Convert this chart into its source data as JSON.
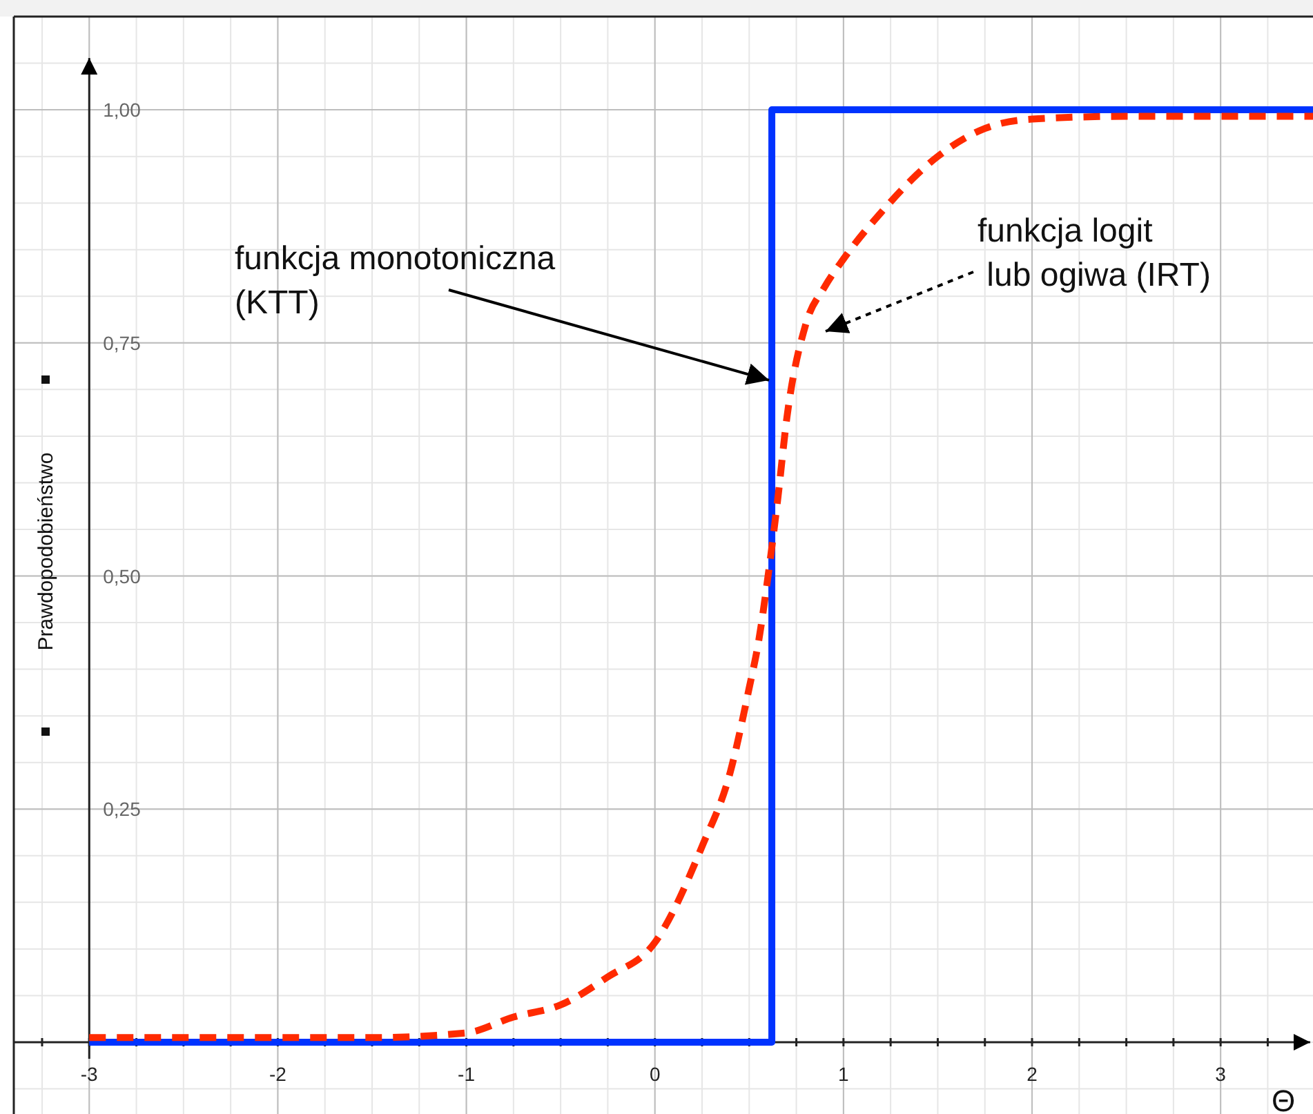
{
  "chart_data": {
    "type": "line",
    "xlabel": "Θ",
    "ylabel": "Prawdopodobieństwo",
    "xlim": [
      -3.4,
      3.49
    ],
    "ylim": [
      -0.077,
      1.1
    ],
    "xticks": [
      -3,
      -2,
      -1,
      0,
      1,
      2,
      3
    ],
    "yticks": [
      {
        "value": 0.25,
        "label": "0,25"
      },
      {
        "value": 0.5,
        "label": "0,50"
      },
      {
        "value": 0.75,
        "label": "0,75"
      },
      {
        "value": 1,
        "label": "1,00"
      }
    ],
    "grid": true,
    "series": [
      {
        "type": "step",
        "color": "#0033ff",
        "line_style": "solid",
        "x": [
          -3,
          0.62,
          3.49
        ],
        "values": [
          0,
          1,
          1
        ]
      },
      {
        "type": "line",
        "color": "#ff2a00",
        "line_style": "dashed",
        "x": [
          -3,
          -2,
          -1.5,
          -1,
          -0.75,
          -0.5,
          -0.25,
          0,
          0.25,
          0.4,
          0.5,
          0.55,
          0.6,
          0.65,
          0.7,
          0.8,
          0.9,
          1,
          1.2,
          1.5,
          1.75,
          2,
          2.5,
          3,
          3.49
        ],
        "values": [
          0.005,
          0.005,
          0.005,
          0.01,
          0.027,
          0.04,
          0.07,
          0.107,
          0.21,
          0.29,
          0.38,
          0.43,
          0.5,
          0.58,
          0.67,
          0.77,
          0.81,
          0.84,
          0.89,
          0.95,
          0.98,
          0.99,
          0.993,
          0.993,
          0.993
        ]
      }
    ],
    "annotations": [
      {
        "text": "funkcja monotoniczna\n(KTT)",
        "x": 0.62,
        "y": 0.71
      },
      "funkcja logit\n lub ogiwa (IRT)"
    ]
  }
}
